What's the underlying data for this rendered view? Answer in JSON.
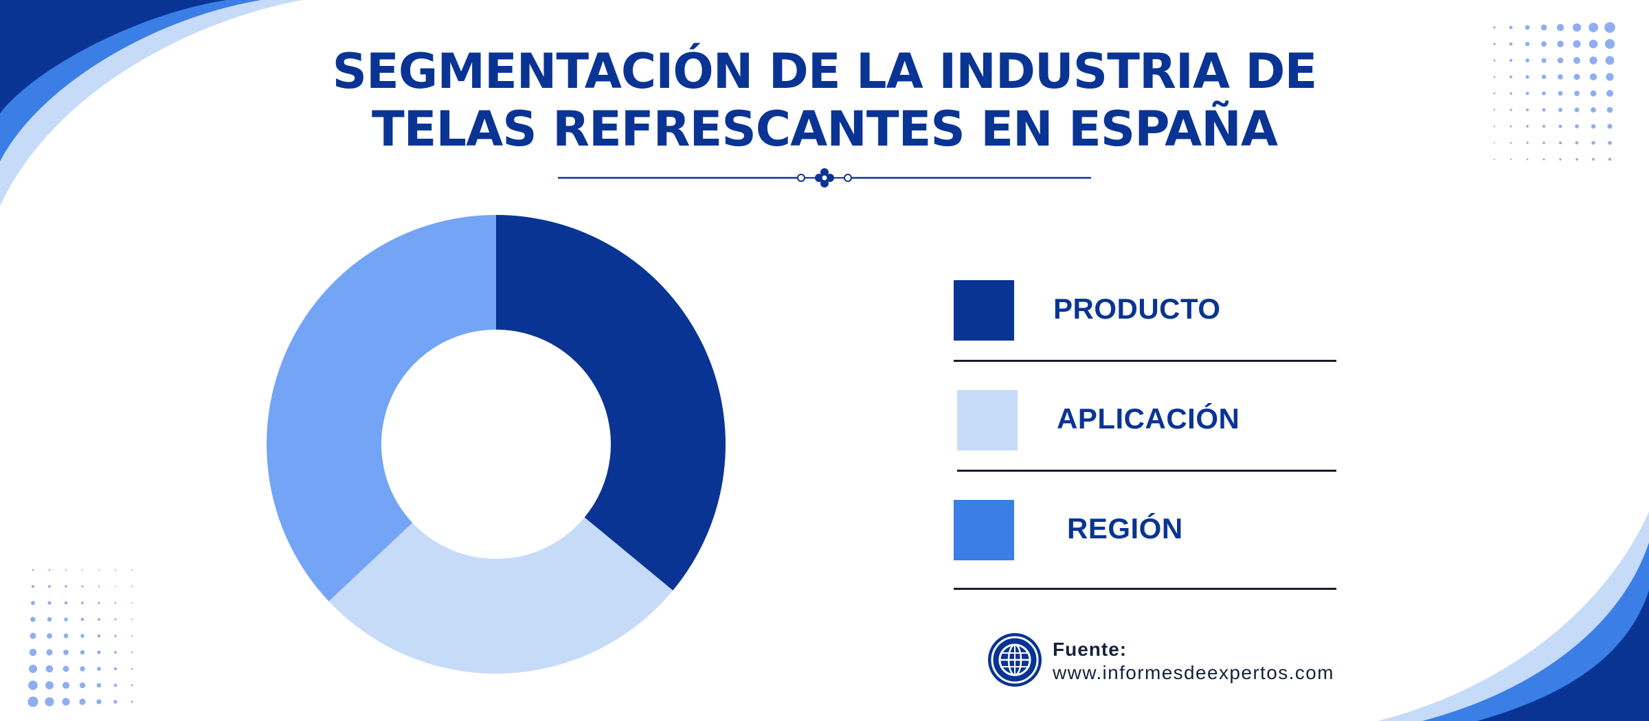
{
  "title_lines": [
    "SEGMENTACIÓN DE LA INDUSTRIA DE",
    "TELAS REFRESCANTES EN ESPAÑA"
  ],
  "chart_data": {
    "type": "pie",
    "variant": "donut",
    "title": "SEGMENTACIÓN DE LA INDUSTRIA DE TELAS REFRESCANTES EN ESPAÑA",
    "categories": [
      "PRODUCTO",
      "APLICACIÓN",
      "REGIÓN"
    ],
    "values": [
      36,
      27,
      37
    ],
    "slice_colors": [
      "#0a3494",
      "#c6dbf8",
      "#74a4f6"
    ],
    "legend_colors": [
      "#0a3494",
      "#c6dbf8",
      "#3a7ee6"
    ],
    "legend_placement": "right"
  },
  "source": {
    "label": "Fuente:",
    "url": "www.informesdeexpertos.com",
    "icon": "globe-icon"
  },
  "colors": {
    "primary": "#0a3494",
    "accent": "#3a7ee6",
    "light": "#c6dbf8",
    "dots": "#8eaef0"
  }
}
